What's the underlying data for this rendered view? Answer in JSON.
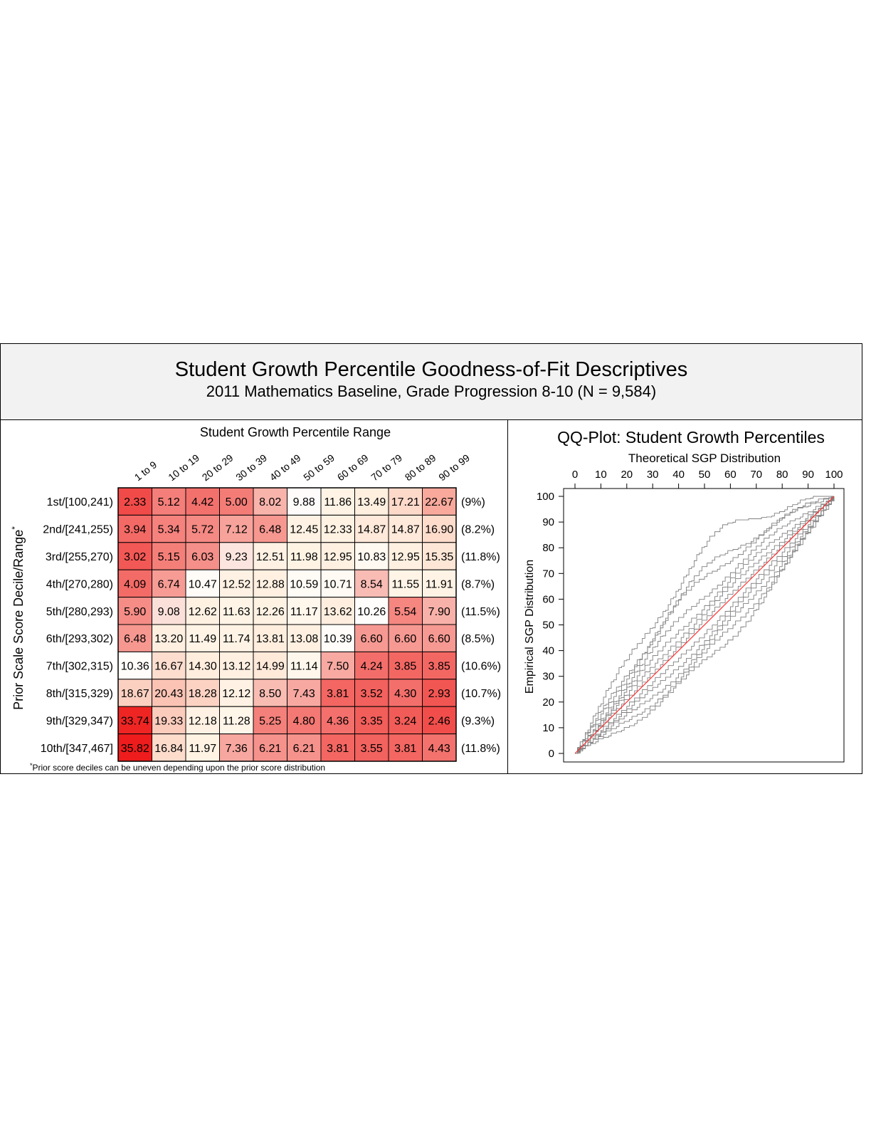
{
  "header": {
    "title": "Student Growth Percentile Goodness-of-Fit Descriptives",
    "subtitle": "2011 Mathematics Baseline, Grade Progression 8-10 (N = 9,584)"
  },
  "chart_data": [
    {
      "type": "heatmap",
      "title": "Student Growth Percentile Range",
      "ylabel": "Prior Scale Score Decile/Range",
      "ylabel_superscript": "*",
      "footnote_mark": "*",
      "footnote": "Prior score deciles can be uneven depending upon the prior score distribution",
      "columns": [
        "1 to 9",
        "10 to 19",
        "20 to 29",
        "30 to 39",
        "40 to 49",
        "50 to 59",
        "60 to 69",
        "70 to 79",
        "80 to 89",
        "90 to 99"
      ],
      "rows": [
        "1st/[100,241)",
        "2nd/[241,255)",
        "3rd/[255,270)",
        "4th/[270,280)",
        "5th/[280,293)",
        "6th/[293,302)",
        "7th/[302,315)",
        "8th/[315,329)",
        "9th/[329,347)",
        "10th/[347,467]"
      ],
      "row_percents": [
        "(9%)",
        "(8.2%)",
        "(11.8%)",
        "(8.7%)",
        "(11.5%)",
        "(8.5%)",
        "(10.6%)",
        "(10.7%)",
        "(9.3%)",
        "(11.8%)"
      ],
      "values": [
        [
          "2.33",
          "5.12",
          "4.42",
          "5.00",
          "8.02",
          "9.88",
          "11.86",
          "13.49",
          "17.21",
          "22.67"
        ],
        [
          "3.94",
          "5.34",
          "5.72",
          "7.12",
          "6.48",
          "12.45",
          "12.33",
          "14.87",
          "14.87",
          "16.90"
        ],
        [
          "3.02",
          "5.15",
          "6.03",
          "9.23",
          "12.51",
          "11.98",
          "12.95",
          "10.83",
          "12.95",
          "15.35"
        ],
        [
          "4.09",
          "6.74",
          "10.47",
          "12.52",
          "12.88",
          "10.59",
          "10.71",
          "8.54",
          "11.55",
          "11.91"
        ],
        [
          "5.90",
          "9.08",
          "12.62",
          "11.63",
          "12.26",
          "11.17",
          "13.62",
          "10.26",
          "5.54",
          "7.90"
        ],
        [
          "6.48",
          "13.20",
          "11.49",
          "11.74",
          "13.81",
          "13.08",
          "10.39",
          "6.60",
          "6.60",
          "6.60"
        ],
        [
          "10.36",
          "16.67",
          "14.30",
          "13.12",
          "14.99",
          "11.14",
          "7.50",
          "4.24",
          "3.85",
          "3.85"
        ],
        [
          "18.67",
          "20.43",
          "18.28",
          "12.12",
          "8.50",
          "7.43",
          "3.81",
          "3.52",
          "4.30",
          "2.93"
        ],
        [
          "33.74",
          "19.33",
          "12.18",
          "11.28",
          "5.25",
          "4.80",
          "4.36",
          "3.35",
          "3.24",
          "2.46"
        ],
        [
          "35.82",
          "16.84",
          "11.97",
          "7.36",
          "6.21",
          "6.21",
          "3.81",
          "3.55",
          "3.81",
          "4.43"
        ]
      ],
      "reference_value": 10,
      "colors": {
        "high": "#ee1c1c",
        "mid": "#ffffff",
        "low_tint": "#fff4e6"
      }
    },
    {
      "type": "line",
      "title": "QQ-Plot: Student Growth Percentiles",
      "xlabel": "Theoretical SGP Distribution",
      "ylabel": "Empirical SGP Distribution",
      "xlim": [
        0,
        100
      ],
      "ylim": [
        0,
        100
      ],
      "xticks": [
        0,
        10,
        20,
        30,
        40,
        50,
        60,
        70,
        80,
        90,
        100
      ],
      "yticks": [
        0,
        10,
        20,
        30,
        40,
        50,
        60,
        70,
        80,
        90,
        100
      ],
      "reference_line": {
        "x": [
          0,
          100
        ],
        "y": [
          0,
          100
        ],
        "color": "#ff3030"
      },
      "curve_color": "#808080",
      "curve_family": {
        "bulge": [
          28,
          20,
          18,
          12,
          8,
          5,
          2,
          -3,
          -6,
          -9,
          -12,
          -15
        ]
      }
    }
  ]
}
